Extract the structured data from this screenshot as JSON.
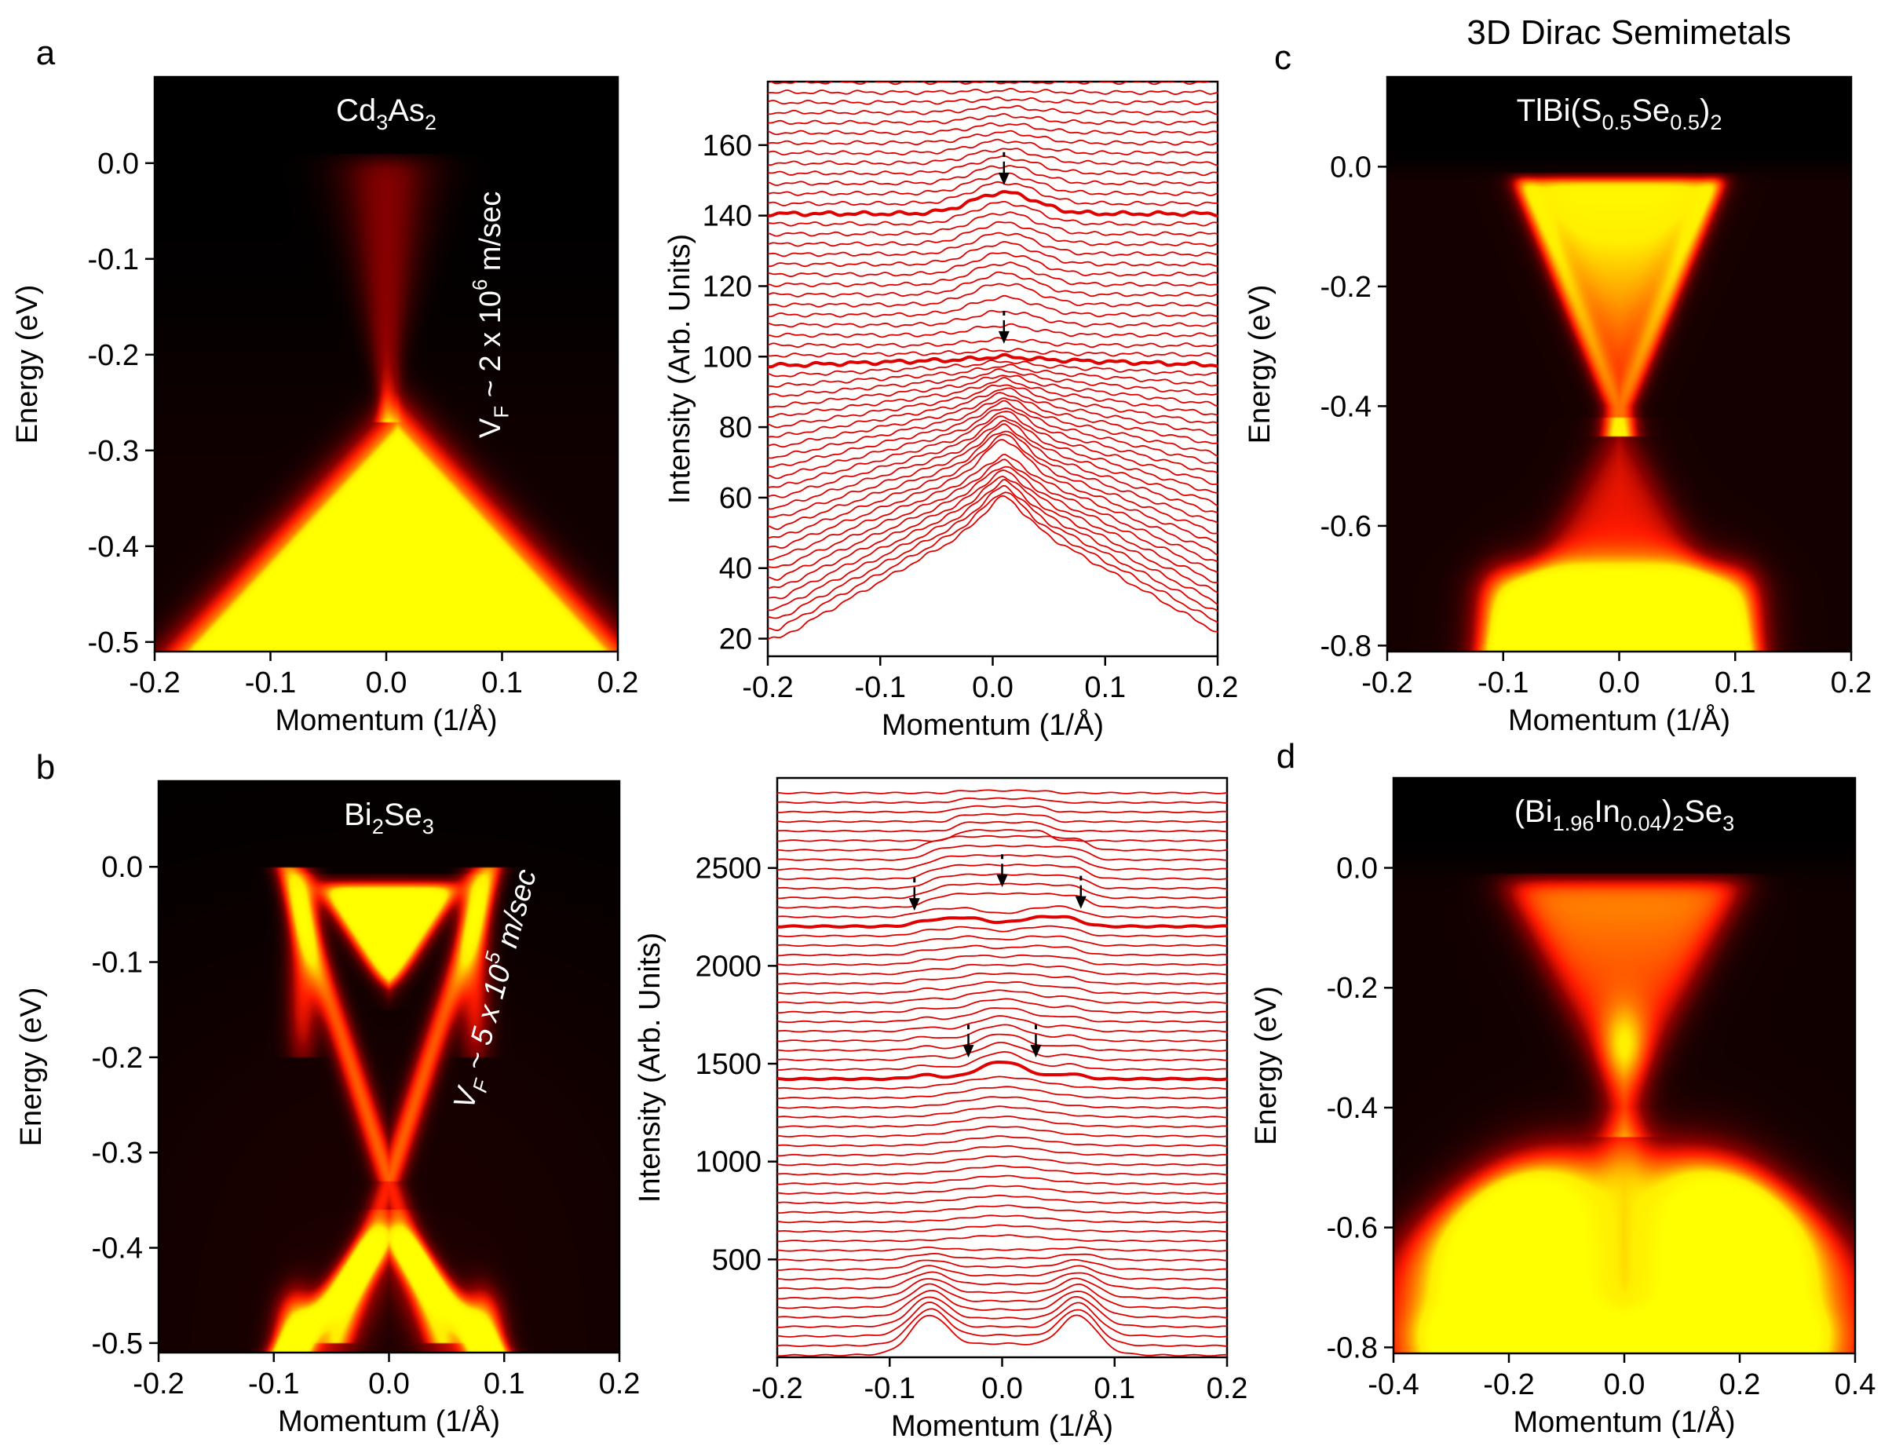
{
  "figure": {
    "main_title": "3D Dirac Semimetals"
  },
  "chart_data": [
    {
      "id": "a-map",
      "panel_letter": "a",
      "type": "heatmap",
      "title_parts": [
        {
          "t": "Cd"
        },
        {
          "t": "3",
          "sub": true
        },
        {
          "t": "As"
        },
        {
          "t": "2",
          "sub": true
        }
      ],
      "xlabel": "Momentum (1/Å)",
      "ylabel": "Energy (eV)",
      "xlim": [
        -0.2,
        0.2
      ],
      "ylim": [
        -0.51,
        0.09
      ],
      "xticks": [
        -0.2,
        -0.1,
        0.0,
        0.1,
        0.2
      ],
      "xtick_labels": [
        "-0.2",
        "-0.1",
        "0.0",
        "0.1",
        "0.2"
      ],
      "yticks": [
        0.0,
        -0.1,
        -0.2,
        -0.3,
        -0.4,
        -0.5
      ],
      "ytick_labels": [
        "0.0",
        "-0.1",
        "-0.2",
        "-0.3",
        "-0.4",
        "-0.5"
      ],
      "colormap": [
        "#000000",
        "#3a0000",
        "#8a0000",
        "#ff1a00",
        "#ff7a00",
        "#ffee00",
        "#ffff00"
      ],
      "annotation_parts": [
        {
          "t": "V"
        },
        {
          "t": "F",
          "sub": true
        },
        {
          "t": " ~ 2 x 10"
        },
        {
          "t": "6",
          "sup": true
        },
        {
          "t": "  m/sec"
        }
      ],
      "features": [
        {
          "kind": "upper_cone",
          "k0": 0.0,
          "e_node": -0.24,
          "e_top": 0.0,
          "half_width_top": 0.025,
          "intensity": 0.32
        },
        {
          "kind": "lower_cone",
          "k0": 0.01,
          "e_apex": -0.27,
          "slope_eV_per_invA": 1.3,
          "intensity": 1.0
        }
      ]
    },
    {
      "id": "a-edc",
      "type": "line",
      "xlabel": "Momentum (1/Å)",
      "ylabel": "Intensity (Arb. Units)",
      "xlim": [
        -0.2,
        0.2
      ],
      "ylim": [
        15,
        178
      ],
      "xticks": [
        -0.2,
        -0.1,
        0.0,
        0.1,
        0.2
      ],
      "xtick_labels": [
        "-0.2",
        "-0.1",
        "0.0",
        "0.1",
        "0.2"
      ],
      "yticks": [
        20,
        40,
        60,
        80,
        100,
        120,
        140,
        160
      ],
      "ytick_labels": [
        "20",
        "40",
        "60",
        "80",
        "100",
        "120",
        "140",
        "160"
      ],
      "line_color": "#e00000",
      "series_count": 56,
      "baseline_first": 20,
      "baseline_step": 2.87,
      "highlight_indices": [
        27,
        42
      ],
      "arrows": [
        {
          "k": 0.01,
          "y": 158
        },
        {
          "k": 0.01,
          "y": 113
        }
      ],
      "profile_model": "stacked_mdc_cd3as2"
    },
    {
      "id": "b-map",
      "panel_letter": "b",
      "type": "heatmap",
      "title_parts": [
        {
          "t": "Bi"
        },
        {
          "t": "2",
          "sub": true
        },
        {
          "t": "Se"
        },
        {
          "t": "3",
          "sub": true
        }
      ],
      "xlabel": "Momentum (1/Å)",
      "ylabel": "Energy (eV)",
      "xlim": [
        -0.2,
        0.2
      ],
      "ylim": [
        -0.51,
        0.09
      ],
      "xticks": [
        -0.2,
        -0.1,
        0.0,
        0.1,
        0.2
      ],
      "xtick_labels": [
        "-0.2",
        "-0.1",
        "0.0",
        "0.1",
        "0.2"
      ],
      "yticks": [
        0.0,
        -0.1,
        -0.2,
        -0.3,
        -0.4,
        -0.5
      ],
      "ytick_labels": [
        "0.0",
        "-0.1",
        "-0.2",
        "-0.3",
        "-0.4",
        "-0.5"
      ],
      "colormap": [
        "#000000",
        "#3a0000",
        "#8a0000",
        "#ff1a00",
        "#ff7a00",
        "#ffee00",
        "#ffff00"
      ],
      "annotation_parts": [
        {
          "t": "V"
        },
        {
          "t": "F",
          "sub": true
        },
        {
          "t": " ~ 5 x 10"
        },
        {
          "t": "5",
          "sup": true
        },
        {
          "t": "  m/sec"
        }
      ],
      "features": [
        {
          "kind": "dirac_x",
          "k0": 0.0,
          "e_node": -0.33,
          "slope_eV_per_invA": 3.7
        },
        {
          "kind": "conduction_pocket",
          "k0": 0.0,
          "e_bottom": -0.13,
          "e_top": -0.02,
          "half_width": 0.06
        },
        {
          "kind": "valence_arms",
          "k0": 0.0,
          "e_top": -0.38,
          "k_at_bottom": 0.08
        }
      ]
    },
    {
      "id": "b-edc",
      "type": "line",
      "xlabel": "Momentum (1/Å)",
      "ylabel": "Intensity (Arb. Units)",
      "xlim": [
        -0.2,
        0.2
      ],
      "ylim": [
        0,
        2960
      ],
      "xticks": [
        -0.2,
        -0.1,
        0.0,
        0.1,
        0.2
      ],
      "xtick_labels": [
        "-0.2",
        "-0.1",
        "0.0",
        "0.1",
        "0.2"
      ],
      "yticks": [
        500,
        1000,
        1500,
        2000,
        2500
      ],
      "ytick_labels": [
        "500",
        "1000",
        "1500",
        "2000",
        "2500"
      ],
      "line_color": "#e00000",
      "series_count": 60,
      "baseline_first": 10,
      "baseline_step": 48.7,
      "highlight_indices": [
        29,
        45
      ],
      "arrows": [
        {
          "k": -0.078,
          "y": 2450
        },
        {
          "k": 0.0,
          "y": 2570
        },
        {
          "k": 0.07,
          "y": 2460
        },
        {
          "k": -0.03,
          "y": 1700
        },
        {
          "k": 0.03,
          "y": 1700
        }
      ],
      "profile_model": "stacked_mdc_bi2se3"
    },
    {
      "id": "c-map",
      "panel_letter": "c",
      "type": "heatmap",
      "title_parts": [
        {
          "t": "TlBi(S"
        },
        {
          "t": "0.5",
          "sub": true
        },
        {
          "t": "Se"
        },
        {
          "t": "0.5",
          "sub": true
        },
        {
          "t": ")"
        },
        {
          "t": "2",
          "sub": true
        }
      ],
      "xlabel": "Momentum (1/Å)",
      "ylabel": "Energy (eV)",
      "xlim": [
        -0.2,
        0.2
      ],
      "ylim": [
        -0.81,
        0.15
      ],
      "xticks": [
        -0.2,
        -0.1,
        0.0,
        0.1,
        0.2
      ],
      "xtick_labels": [
        "-0.2",
        "-0.1",
        "0.0",
        "0.1",
        "0.2"
      ],
      "yticks": [
        0.0,
        -0.2,
        -0.4,
        -0.6,
        -0.8
      ],
      "ytick_labels": [
        "0.0",
        "-0.2",
        "-0.4",
        "-0.6",
        "-0.8"
      ],
      "colormap": [
        "#000000",
        "#3a0000",
        "#8a0000",
        "#ff1a00",
        "#ff7a00",
        "#ffee00",
        "#ffff00"
      ],
      "features": [
        {
          "kind": "upper_cone",
          "k0": 0.0,
          "e_node": -0.4,
          "e_top": -0.02,
          "half_width_top": 0.08,
          "intensity": 0.75
        },
        {
          "kind": "lower_cone",
          "k0": 0.0,
          "e_apex": -0.42,
          "slope_eV_per_invA": 3.5,
          "intensity": 0.6
        },
        {
          "kind": "valence_band",
          "e_top": -0.68,
          "intensity": 1.0
        }
      ]
    },
    {
      "id": "d-map",
      "panel_letter": "d",
      "type": "heatmap",
      "title_parts": [
        {
          "t": "(Bi"
        },
        {
          "t": "1.96",
          "sub": true
        },
        {
          "t": "In"
        },
        {
          "t": "0.04",
          "sub": true
        },
        {
          "t": ")"
        },
        {
          "t": "2",
          "sub": true
        },
        {
          "t": "Se"
        },
        {
          "t": "3",
          "sub": true
        }
      ],
      "xlabel": "Momentum (1/Å)",
      "ylabel": "Energy (eV)",
      "xlim": [
        -0.4,
        0.4
      ],
      "ylim": [
        -0.81,
        0.15
      ],
      "xticks": [
        -0.4,
        -0.2,
        0.0,
        0.2,
        0.4
      ],
      "xtick_labels": [
        "-0.4",
        "-0.2",
        "0.0",
        "0.2",
        "0.4"
      ],
      "yticks": [
        0.0,
        -0.2,
        -0.4,
        -0.6,
        -0.8
      ],
      "ytick_labels": [
        "0.0",
        "-0.2",
        "-0.4",
        "-0.6",
        "-0.8"
      ],
      "colormap": [
        "#000000",
        "#3a0000",
        "#8a0000",
        "#ff1a00",
        "#ff7a00",
        "#ffee00",
        "#ffff00"
      ],
      "features": [
        {
          "kind": "upper_cone",
          "k0": 0.0,
          "e_node": -0.4,
          "e_top": -0.02,
          "half_width_top": 0.2,
          "intensity": 0.7
        },
        {
          "kind": "valence_dome",
          "e_top": -0.48,
          "peak_k": 0.2,
          "intensity": 1.0
        }
      ]
    }
  ]
}
